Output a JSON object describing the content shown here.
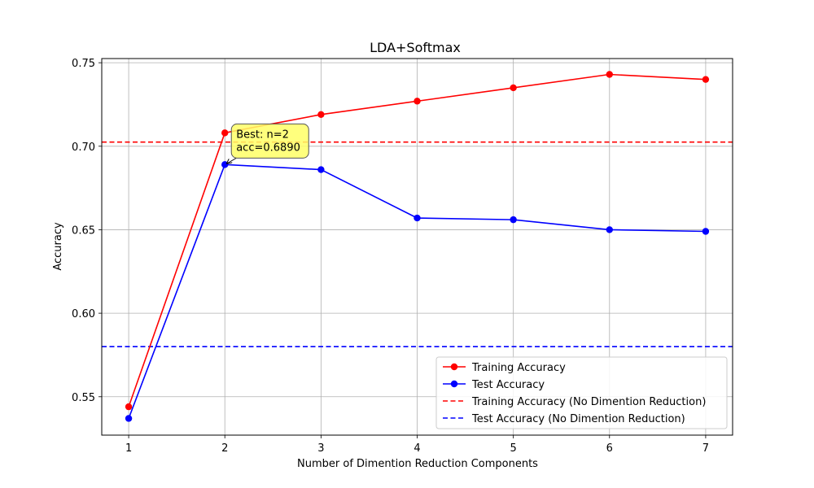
{
  "chart_data": {
    "type": "line",
    "title": "LDA+Softmax",
    "xlabel": "Number of Dimention Reduction Components",
    "ylabel": "Accuracy",
    "x": [
      1,
      2,
      3,
      4,
      5,
      6,
      7
    ],
    "xlim": [
      0.72,
      7.28
    ],
    "ylim": [
      0.527,
      0.7525
    ],
    "xticks": [
      "1",
      "2",
      "3",
      "4",
      "5",
      "6",
      "7"
    ],
    "yticks": [
      "0.55",
      "0.60",
      "0.65",
      "0.70",
      "0.75"
    ],
    "grid": true,
    "legend_position": "lower-right",
    "series": [
      {
        "name": "Training Accuracy",
        "color": "#ff0000",
        "style": "solid",
        "marker": "circle",
        "values": [
          0.544,
          0.708,
          0.719,
          0.727,
          0.735,
          0.743,
          0.74
        ]
      },
      {
        "name": "Test Accuracy",
        "color": "#0000ff",
        "style": "solid",
        "marker": "circle",
        "values": [
          0.537,
          0.689,
          0.686,
          0.657,
          0.656,
          0.65,
          0.649
        ]
      }
    ],
    "reference_lines": [
      {
        "name": "Training Accuracy (No Dimention Reduction)",
        "color": "#ff0000",
        "style": "dashed",
        "value": 0.7025
      },
      {
        "name": "Test Accuracy (No Dimention Reduction)",
        "color": "#0000ff",
        "style": "dashed",
        "value": 0.58
      }
    ],
    "annotation": {
      "lines": [
        "Best: n=2",
        "acc=0.6890"
      ],
      "x": 2,
      "y": 0.689,
      "box_color": "#ffff66"
    }
  }
}
